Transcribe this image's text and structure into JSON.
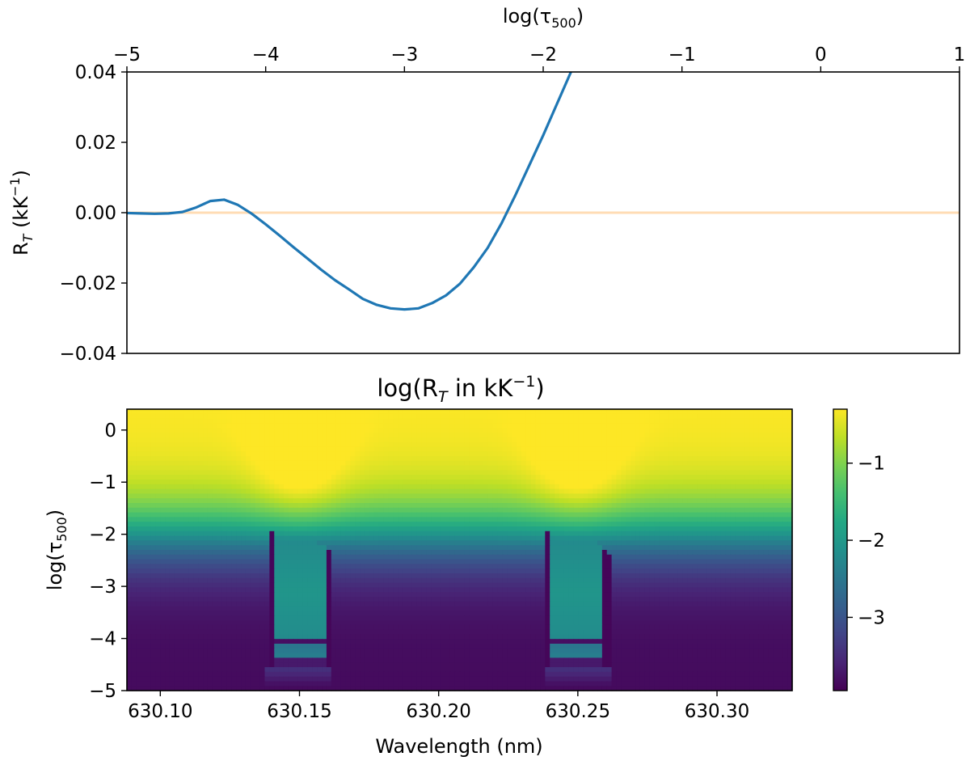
{
  "chart_data": [
    {
      "type": "line",
      "top_xlabel": "log(τ",
      "top_xlabel_sub": "500",
      "top_xlabel_close": ")",
      "ylabel": "R",
      "ylabel_sub": "T",
      "ylabel_unit": " (kK",
      "ylabel_unit_sup": "−1",
      "ylabel_close": ")",
      "xlim": [
        -5,
        1
      ],
      "ylim": [
        -0.04,
        0.04
      ],
      "x_ticks": [
        "−5",
        "−4",
        "−3",
        "−2",
        "−1",
        "0",
        "1"
      ],
      "x_tick_values": [
        -5,
        -4,
        -3,
        -2,
        -1,
        0,
        1
      ],
      "y_ticks": [
        "0.04",
        "0.02",
        "0.00",
        "−0.02",
        "−0.04"
      ],
      "y_tick_values": [
        0.04,
        0.02,
        0.0,
        -0.02,
        -0.04
      ],
      "series": [
        {
          "color": "#1f77b4",
          "x": [
            -5.0,
            -4.9,
            -4.8,
            -4.7,
            -4.6,
            -4.5,
            -4.4,
            -4.3,
            -4.2,
            -4.1,
            -4.0,
            -3.9,
            -3.8,
            -3.7,
            -3.6,
            -3.5,
            -3.4,
            -3.3,
            -3.2,
            -3.1,
            -3.0,
            -2.9,
            -2.8,
            -2.7,
            -2.6,
            -2.5,
            -2.4,
            -2.3,
            -2.2,
            -2.1,
            -2.0,
            -1.9,
            -1.8
          ],
          "y": [
            -0.0001,
            -0.0002,
            -0.0003,
            -0.0002,
            0.0002,
            0.0015,
            0.0033,
            0.0037,
            0.0022,
            -0.0003,
            -0.0033,
            -0.0065,
            -0.0098,
            -0.013,
            -0.0162,
            -0.0192,
            -0.0218,
            -0.0245,
            -0.0262,
            -0.0272,
            -0.0275,
            -0.0272,
            -0.0257,
            -0.0235,
            -0.0202,
            -0.0155,
            -0.01,
            -0.003,
            0.005,
            0.0135,
            0.022,
            0.031,
            0.04
          ]
        }
      ],
      "reference_line": {
        "y": 0.0,
        "color": "#ffdcb4"
      }
    },
    {
      "type": "heatmap",
      "title": "log(R",
      "title_sub": "T",
      "title_mid": " in kK",
      "title_sup": "−1",
      "title_close": ")",
      "xlabel": "Wavelength (nm)",
      "ylabel": "log(τ",
      "ylabel_sub": "500",
      "ylabel_close": ")",
      "xlim": [
        630.088,
        630.327
      ],
      "ylim": [
        -5,
        0.4
      ],
      "x_ticks": [
        "630.10",
        "630.15",
        "630.20",
        "630.25",
        "630.30"
      ],
      "x_tick_values": [
        630.1,
        630.15,
        630.2,
        630.25,
        630.3
      ],
      "y_ticks": [
        "0",
        "−1",
        "−2",
        "−3",
        "−4",
        "−5"
      ],
      "y_tick_values": [
        0,
        -1,
        -2,
        -3,
        -4,
        -5
      ],
      "colormap": "viridis",
      "value_range": [
        -3.95,
        -0.3
      ],
      "spectral_lines_nm": [
        630.15,
        630.25
      ],
      "colorbar": {
        "ticks": [
          "−1",
          "−2",
          "−3"
        ],
        "tick_values": [
          -1,
          -2,
          -3
        ]
      }
    }
  ]
}
